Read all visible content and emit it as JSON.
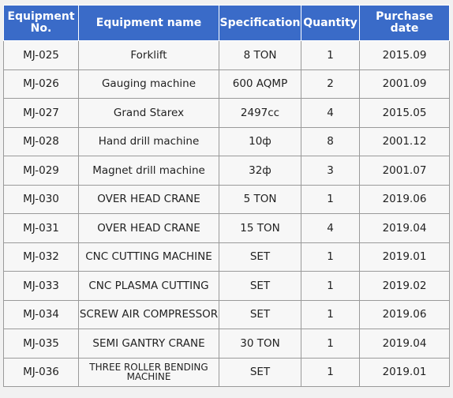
{
  "table": {
    "headers": [
      "Equipment No.",
      "Equipment name",
      "Specification",
      "Quantity",
      "Purchase date"
    ],
    "rows": [
      [
        "MJ-025",
        "Forklift",
        "8 TON",
        "1",
        "2015.09"
      ],
      [
        "MJ-026",
        "Gauging machine",
        "600 AQMP",
        "2",
        "2001.09"
      ],
      [
        "MJ-027",
        "Grand Starex",
        "2497cc",
        "4",
        "2015.05"
      ],
      [
        "MJ-028",
        "Hand drill machine",
        "10ф",
        "8",
        "2001.12"
      ],
      [
        "MJ-029",
        "Magnet drill machine",
        "32ф",
        "3",
        "2001.07"
      ],
      [
        "MJ-030",
        "OVER HEAD CRANE",
        "5 TON",
        "1",
        "2019.06"
      ],
      [
        "MJ-031",
        "OVER HEAD CRANE",
        "15 TON",
        "4",
        "2019.04"
      ],
      [
        "MJ-032",
        "CNC CUTTING MACHINE",
        "SET",
        "1",
        "2019.01"
      ],
      [
        "MJ-033",
        "CNC PLASMA CUTTING",
        "SET",
        "1",
        "2019.02"
      ],
      [
        "MJ-034",
        "SCREW AIR COMPRESSOR",
        "SET",
        "1",
        "2019.06"
      ],
      [
        "MJ-035",
        "SEMI GANTRY CRANE",
        "30 TON",
        "1",
        "2019.04"
      ],
      [
        "MJ-036",
        "THREE ROLLER BENDING MACHINE",
        "SET",
        "1",
        "2019.01"
      ]
    ]
  },
  "colors": {
    "header_background": "#3a6bc8",
    "header_text": "#ffffff",
    "cell_background": "#f7f7f7",
    "cell_text": "#222222",
    "border": "#9a9a9a",
    "page_background": "#f1f1f1"
  }
}
